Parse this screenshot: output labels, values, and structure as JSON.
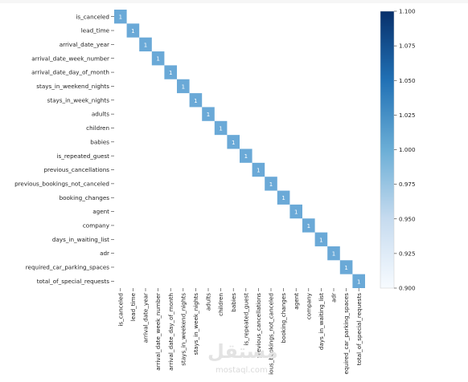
{
  "chart_data": {
    "type": "heatmap",
    "title": "",
    "xlabel": "",
    "ylabel": "",
    "rows": [
      "is_canceled",
      "lead_time",
      "arrival_date_year",
      "arrival_date_week_number",
      "arrival_date_day_of_month",
      "stays_in_weekend_nights",
      "stays_in_week_nights",
      "adults",
      "children",
      "babies",
      "is_repeated_guest",
      "previous_cancellations",
      "previous_bookings_not_canceled",
      "booking_changes",
      "agent",
      "company",
      "days_in_waiting_list",
      "adr",
      "required_car_parking_spaces",
      "total_of_special_requests"
    ],
    "columns": [
      "is_canceled",
      "lead_time",
      "arrival_date_year",
      "arrival_date_week_number",
      "arrival_date_day_of_month",
      "stays_in_weekend_nights",
      "stays_in_week_nights",
      "adults",
      "children",
      "babies",
      "is_repeated_guest",
      "previous_cancellations",
      "ious_bookings_not_canceled",
      "booking_changes",
      "agent",
      "company",
      "days_in_waiting_list",
      "adr",
      "equired_car_parking_spaces",
      "total_of_special_requests"
    ],
    "cells_shown": "diagonal only",
    "diagonal_value": 1,
    "cell_label": "1",
    "colorbar": {
      "ticks": [
        "0.900",
        "0.925",
        "0.950",
        "0.975",
        "1.000",
        "1.025",
        "1.050",
        "1.075",
        "1.100"
      ],
      "range": [
        0.9,
        1.1
      ],
      "colors": [
        "#f7fbff",
        "#c6dbef",
        "#6baed6",
        "#2171b5",
        "#08306b"
      ]
    },
    "cell_color": "#6aa9d7"
  },
  "watermark": {
    "arabic": "مستقل",
    "latin": "mostaql.com"
  }
}
